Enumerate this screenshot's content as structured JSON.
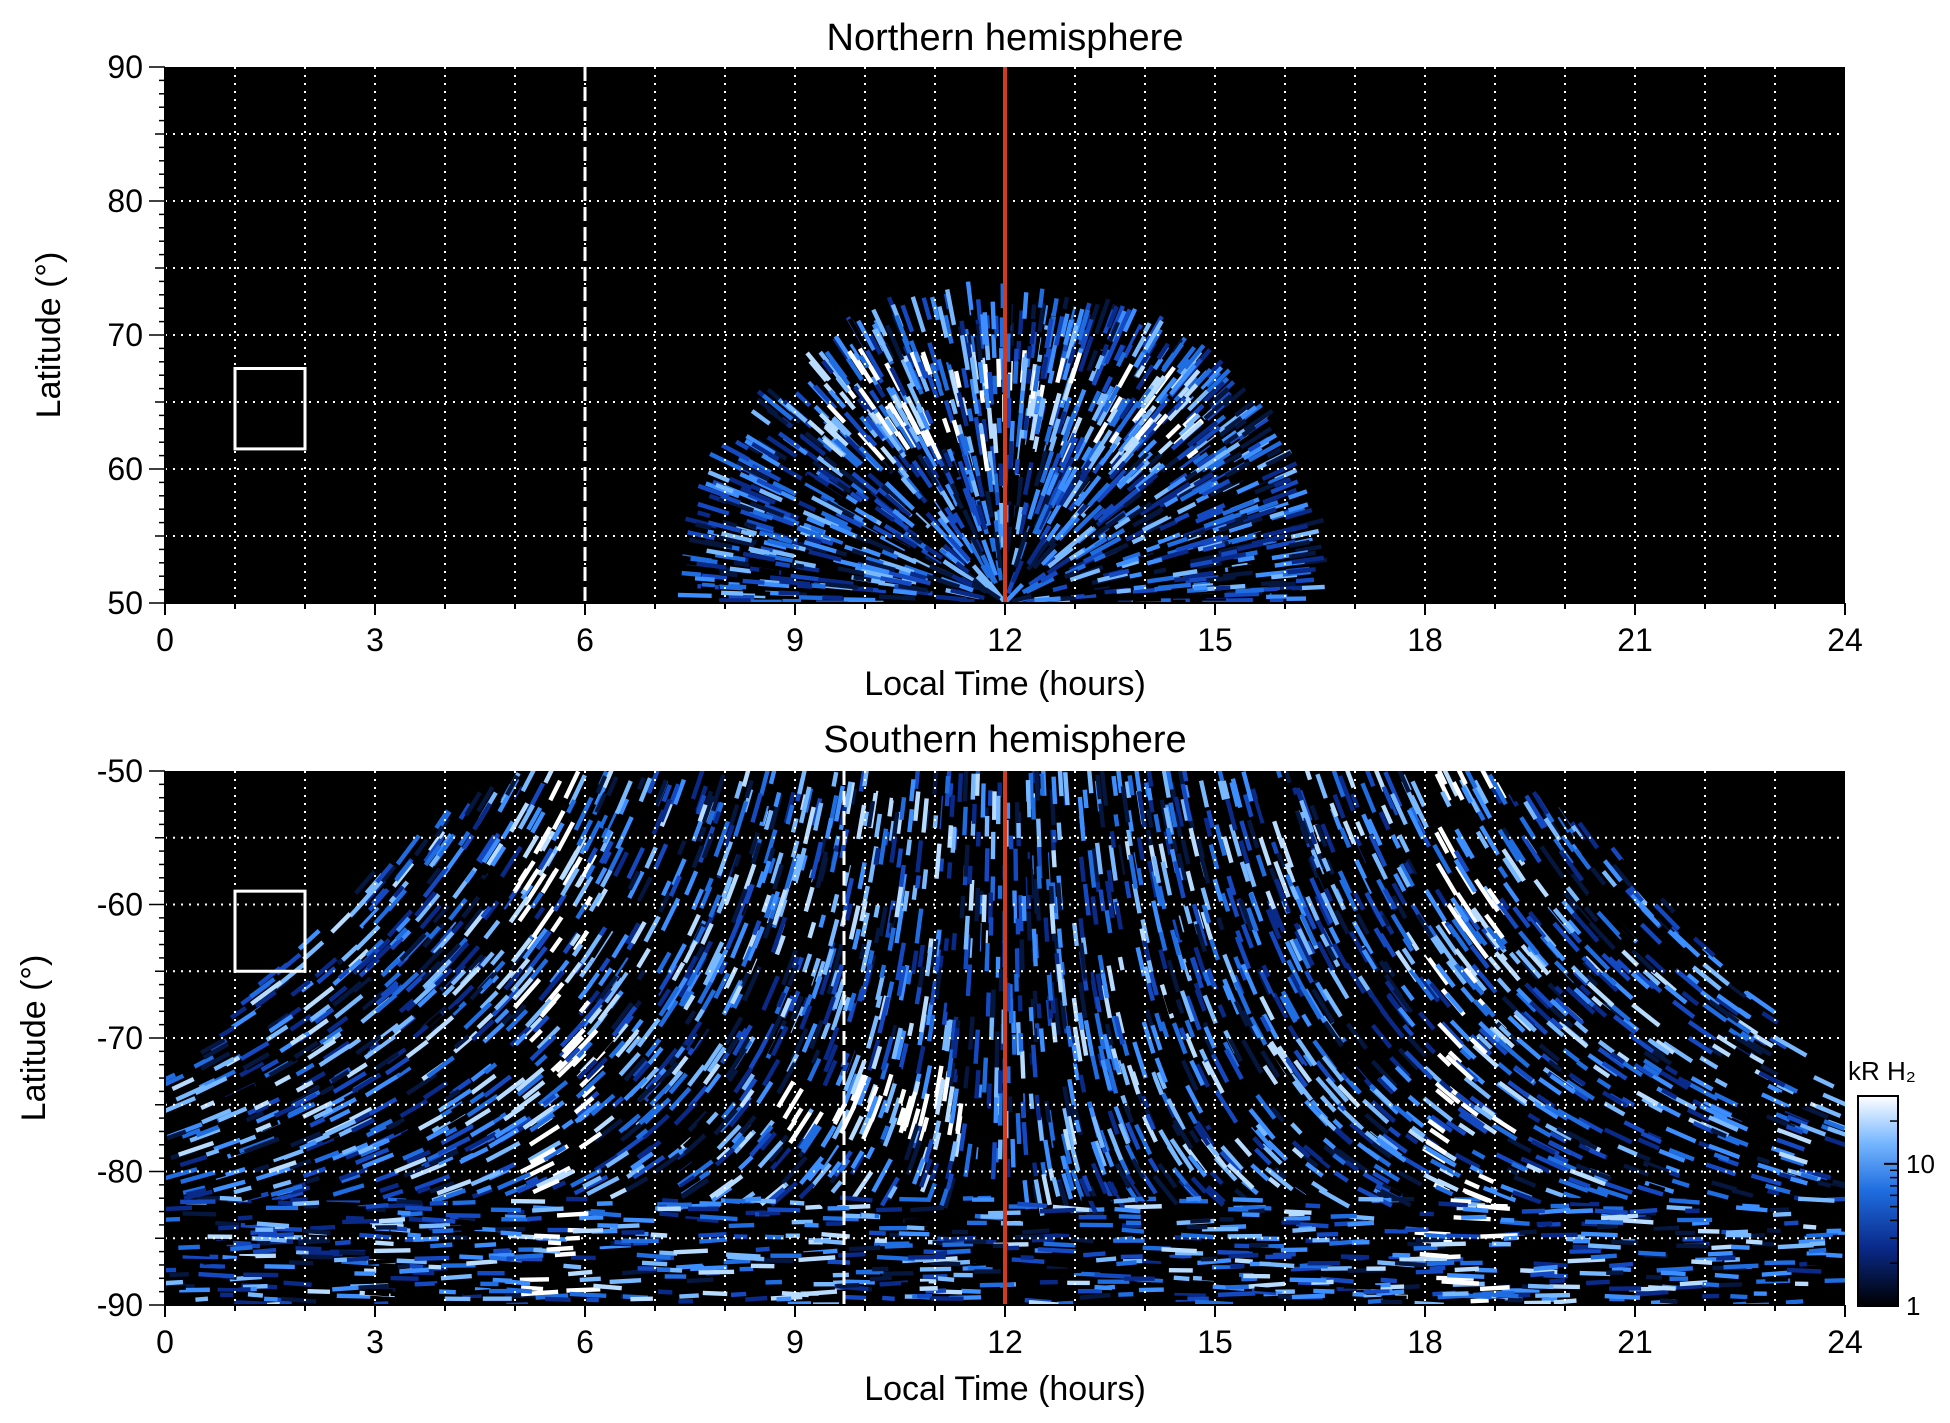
{
  "chart_data": [
    {
      "type": "heatmap",
      "title": "Northern hemisphere",
      "xlabel": "Local Time (hours)",
      "ylabel": "Latitude (°)",
      "xlim": [
        0,
        24
      ],
      "ylim": [
        50,
        90
      ],
      "x_ticks": [
        "0",
        "3",
        "6",
        "9",
        "12",
        "15",
        "18",
        "21",
        "24"
      ],
      "y_ticks": [
        "50",
        "60",
        "70",
        "80",
        "90"
      ],
      "grid": true,
      "colormap": "black-blue-white",
      "emission_region": {
        "lt_range": [
          7.5,
          16.5
        ],
        "lat_range": [
          50,
          73
        ],
        "bright_band_lat": [
          62,
          67
        ]
      },
      "vertical_lines": [
        {
          "x": 12,
          "color": "#d03a1e",
          "style": "solid"
        },
        {
          "x": 6,
          "color": "#ffffff",
          "style": "dashed"
        }
      ],
      "box": {
        "x": [
          1,
          2
        ],
        "y": [
          61.5,
          67.5
        ]
      }
    },
    {
      "type": "heatmap",
      "title": "Southern hemisphere",
      "xlabel": "Local Time (hours)",
      "ylabel": "Latitude (°)",
      "xlim": [
        0,
        24
      ],
      "ylim": [
        -90,
        -50
      ],
      "x_ticks": [
        "0",
        "3",
        "6",
        "9",
        "12",
        "15",
        "18",
        "21",
        "24"
      ],
      "y_ticks": [
        "-50",
        "-60",
        "-70",
        "-80",
        "-90"
      ],
      "grid": true,
      "colormap": "black-blue-white",
      "emission_region": {
        "lt_range": [
          0,
          24
        ],
        "lat_range": [
          -90,
          -50
        ],
        "dark_corners": true
      },
      "vertical_lines": [
        {
          "x": 12,
          "color": "#d03a1e",
          "style": "solid"
        },
        {
          "x": 9.7,
          "color": "#ffffff",
          "style": "dashed"
        }
      ],
      "box": {
        "x": [
          1,
          2
        ],
        "y": [
          -65,
          -59
        ]
      },
      "colorbar": {
        "label": "kR H₂",
        "scale": "log",
        "range": [
          1,
          30
        ],
        "ticks": [
          "1",
          "10"
        ]
      }
    }
  ]
}
